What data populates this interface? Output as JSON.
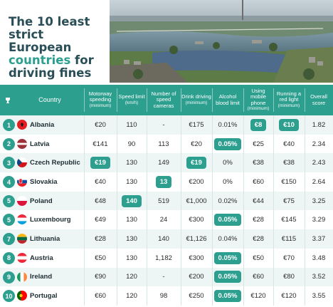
{
  "title": {
    "line1": "The 10 least",
    "line2": "strict European",
    "line3a": "countries",
    "line3b": " for",
    "line4": "driving fines"
  },
  "headers": [
    {
      "main": "Country",
      "sub": ""
    },
    {
      "main": "Motorway speeding",
      "sub": "(minimum)"
    },
    {
      "main": "Speed limit",
      "sub": "(km/h)"
    },
    {
      "main": "Number of speed cameras",
      "sub": ""
    },
    {
      "main": "Drink driving",
      "sub": "(minimum)"
    },
    {
      "main": "Alcohol blood limit",
      "sub": ""
    },
    {
      "main": "Using mobile phone",
      "sub": "(minimum)"
    },
    {
      "main": "Running a red light",
      "sub": "(minimum)"
    },
    {
      "main": "Overall score",
      "sub": ""
    }
  ],
  "rows": [
    {
      "rank": "1",
      "country": "Albania",
      "flag": "albania",
      "cells": [
        "€20",
        "110",
        "-",
        "€175",
        "0.01%",
        "€8",
        "€10",
        "1.82"
      ],
      "highlight": [
        5,
        6
      ]
    },
    {
      "rank": "2",
      "country": "Latvia",
      "flag": "latvia",
      "cells": [
        "€141",
        "90",
        "113",
        "€20",
        "0.05%",
        "€25",
        "€40",
        "2.34"
      ],
      "highlight": [
        4
      ]
    },
    {
      "rank": "3",
      "country": "Czech Republic",
      "flag": "czech",
      "cells": [
        "€19",
        "130",
        "149",
        "€19",
        "0%",
        "€38",
        "€38",
        "2.43"
      ],
      "highlight": [
        0,
        3
      ]
    },
    {
      "rank": "4",
      "country": "Slovakia",
      "flag": "slovakia",
      "cells": [
        "€40",
        "130",
        "13",
        "€200",
        "0%",
        "€60",
        "€150",
        "2.64"
      ],
      "highlight": [
        2
      ]
    },
    {
      "rank": "5",
      "country": "Poland",
      "flag": "poland",
      "cells": [
        "€48",
        "140",
        "519",
        "€1,000",
        "0.02%",
        "€44",
        "€75",
        "3.25"
      ],
      "highlight": [
        1
      ]
    },
    {
      "rank": "5",
      "country": "Luxembourg",
      "flag": "luxembourg",
      "cells": [
        "€49",
        "130",
        "24",
        "€300",
        "0.05%",
        "€28",
        "€145",
        "3.29"
      ],
      "highlight": [
        4
      ]
    },
    {
      "rank": "7",
      "country": "Lithuania",
      "flag": "lithuania",
      "cells": [
        "€28",
        "130",
        "140",
        "€1,126",
        "0.04%",
        "€28",
        "€115",
        "3.37"
      ],
      "highlight": []
    },
    {
      "rank": "8",
      "country": "Austria",
      "flag": "austria",
      "cells": [
        "€50",
        "130",
        "1,182",
        "€300",
        "0.05%",
        "€50",
        "€70",
        "3.48"
      ],
      "highlight": [
        4
      ]
    },
    {
      "rank": "9",
      "country": "Ireland",
      "flag": "ireland",
      "cells": [
        "€90",
        "120",
        "-",
        "€200",
        "0.05%",
        "€60",
        "€80",
        "3.52"
      ],
      "highlight": [
        4
      ]
    },
    {
      "rank": "10",
      "country": "Portugal",
      "flag": "portugal",
      "cells": [
        "€60",
        "120",
        "98",
        "€250",
        "0.05%",
        "€120",
        "€120",
        "3.55"
      ],
      "highlight": [
        4
      ]
    }
  ],
  "colors": {
    "accent": "#2d9f8f",
    "title_dark": "#2a4e57"
  }
}
